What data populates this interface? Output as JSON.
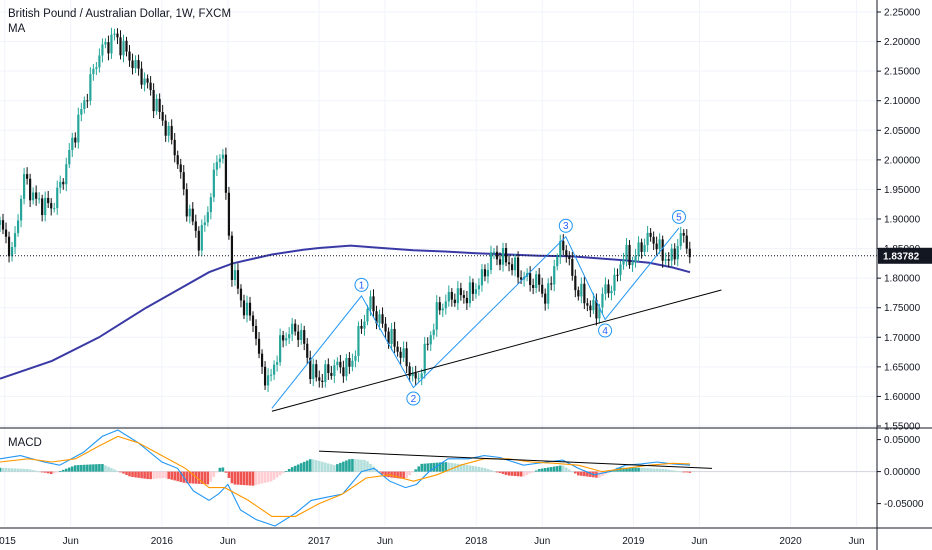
{
  "header": {
    "symbol_title": "British Pound / Australian Dollar, 1W, FXCM",
    "ma_label": "MA",
    "macd_label": "MACD"
  },
  "colors": {
    "up": "#26a69a",
    "down": "#111111",
    "ma": "#3a3aa6",
    "trendline": "#000000",
    "wave": "#2196f3",
    "macd_line": "#2196f3",
    "signal_line": "#ff9800",
    "hist_up_strong": "#26a69a",
    "hist_up_weak": "#b2dfdb",
    "hist_down_strong": "#ef5350",
    "hist_down_weak": "#ffcdd2",
    "price_tag": "#131722"
  },
  "chart_data": [
    {
      "type": "candlestick",
      "title": "British Pound / Australian Dollar, 1W, FXCM",
      "ylim": [
        1.55,
        2.25
      ],
      "yticks": [
        1.55,
        1.6,
        1.65,
        1.7,
        1.75,
        1.8,
        1.85,
        1.9,
        1.95,
        2.0,
        2.05,
        2.1,
        2.15,
        2.2,
        2.25
      ],
      "ytick_labels": [
        "1.55000",
        "1.60000",
        "1.65000",
        "1.70000",
        "1.75000",
        "1.80000",
        "1.85000",
        "1.90000",
        "1.95000",
        "2.00000",
        "2.05000",
        "2.10000",
        "2.15000",
        "2.20000",
        "2.25000"
      ],
      "xlim": [
        2014.97,
        2020.55
      ],
      "xticks": [
        2015.0,
        2015.42,
        2016.0,
        2016.42,
        2017.0,
        2017.42,
        2018.0,
        2018.42,
        2019.0,
        2019.42,
        2020.0,
        2020.42
      ],
      "xtick_labels": [
        "2015",
        "Jun",
        "2016",
        "Jun",
        "2017",
        "Jun",
        "2018",
        "Jun",
        "2019",
        "Jun",
        "2020",
        "Jun"
      ],
      "last_price": 1.83782,
      "last_price_label": "1.83782",
      "price_path": [
        [
          2014.97,
          1.89
        ],
        [
          2015.05,
          1.84
        ],
        [
          2015.12,
          1.97
        ],
        [
          2015.2,
          1.93
        ],
        [
          2015.3,
          1.92
        ],
        [
          2015.36,
          1.96
        ],
        [
          2015.45,
          2.05
        ],
        [
          2015.6,
          2.18
        ],
        [
          2015.7,
          2.21
        ],
        [
          2015.8,
          2.17
        ],
        [
          2015.9,
          2.13
        ],
        [
          2016.0,
          2.07
        ],
        [
          2016.08,
          2.02
        ],
        [
          2016.16,
          1.92
        ],
        [
          2016.24,
          1.86
        ],
        [
          2016.28,
          1.9
        ],
        [
          2016.33,
          1.97
        ],
        [
          2016.38,
          2.03
        ],
        [
          2016.41,
          1.93
        ],
        [
          2016.44,
          1.82
        ],
        [
          2016.52,
          1.75
        ],
        [
          2016.58,
          1.73
        ],
        [
          2016.62,
          1.66
        ],
        [
          2016.68,
          1.62
        ],
        [
          2016.74,
          1.68
        ],
        [
          2016.8,
          1.71
        ],
        [
          2016.88,
          1.71
        ],
        [
          2016.95,
          1.64
        ],
        [
          2017.0,
          1.63
        ],
        [
          2017.1,
          1.65
        ],
        [
          2017.2,
          1.65
        ],
        [
          2017.26,
          1.71
        ],
        [
          2017.32,
          1.76
        ],
        [
          2017.38,
          1.73
        ],
        [
          2017.45,
          1.7
        ],
        [
          2017.55,
          1.66
        ],
        [
          2017.62,
          1.62
        ],
        [
          2017.68,
          1.68
        ],
        [
          2017.76,
          1.75
        ],
        [
          2017.85,
          1.77
        ],
        [
          2017.95,
          1.77
        ],
        [
          2018.04,
          1.8
        ],
        [
          2018.1,
          1.84
        ],
        [
          2018.2,
          1.83
        ],
        [
          2018.3,
          1.8
        ],
        [
          2018.4,
          1.79
        ],
        [
          2018.45,
          1.76
        ],
        [
          2018.5,
          1.83
        ],
        [
          2018.56,
          1.86
        ],
        [
          2018.62,
          1.79
        ],
        [
          2018.7,
          1.76
        ],
        [
          2018.76,
          1.74
        ],
        [
          2018.82,
          1.78
        ],
        [
          2018.88,
          1.79
        ],
        [
          2018.93,
          1.84
        ],
        [
          2019.0,
          1.83
        ],
        [
          2019.06,
          1.86
        ],
        [
          2019.12,
          1.87
        ],
        [
          2019.18,
          1.84
        ],
        [
          2019.24,
          1.83
        ],
        [
          2019.3,
          1.87
        ],
        [
          2019.34,
          1.86
        ],
        [
          2019.36,
          1.84
        ]
      ],
      "moving_average": [
        [
          2014.97,
          1.63
        ],
        [
          2015.3,
          1.66
        ],
        [
          2015.6,
          1.7
        ],
        [
          2015.9,
          1.75
        ],
        [
          2016.1,
          1.78
        ],
        [
          2016.3,
          1.81
        ],
        [
          2016.45,
          1.825
        ],
        [
          2016.7,
          1.84
        ],
        [
          2016.9,
          1.848
        ],
        [
          2017.0,
          1.851
        ],
        [
          2017.2,
          1.855
        ],
        [
          2017.4,
          1.851
        ],
        [
          2017.6,
          1.847
        ],
        [
          2017.8,
          1.845
        ],
        [
          2018.0,
          1.842
        ],
        [
          2018.2,
          1.84
        ],
        [
          2018.4,
          1.838
        ],
        [
          2018.6,
          1.837
        ],
        [
          2018.8,
          1.833
        ],
        [
          2018.95,
          1.83
        ],
        [
          2019.1,
          1.826
        ],
        [
          2019.25,
          1.818
        ],
        [
          2019.36,
          1.81
        ]
      ],
      "trendlines": [
        {
          "from": [
            2016.7,
            1.575
          ],
          "to": [
            2019.56,
            1.78
          ]
        }
      ],
      "elliott_waves": [
        {
          "label": "1",
          "x": 2017.27,
          "y": 1.77
        },
        {
          "label": "2",
          "x": 2017.6,
          "y": 1.615
        },
        {
          "label": "3",
          "x": 2018.57,
          "y": 1.87
        },
        {
          "label": "4",
          "x": 2018.82,
          "y": 1.73
        },
        {
          "label": "5",
          "x": 2019.29,
          "y": 1.885
        }
      ],
      "wave_path": [
        [
          2016.7,
          1.58
        ],
        [
          2017.27,
          1.77
        ],
        [
          2017.6,
          1.615
        ],
        [
          2018.57,
          1.87
        ],
        [
          2018.82,
          1.73
        ],
        [
          2019.29,
          1.885
        ]
      ],
      "legend": [
        {
          "name": "MA"
        }
      ]
    },
    {
      "type": "macd",
      "title": "MACD",
      "ylim": [
        -0.085,
        0.065
      ],
      "yticks": [
        0.05,
        0.0,
        -0.05
      ],
      "ytick_labels": [
        "0.05000",
        "0.00000",
        "-0.05000"
      ],
      "macd_path": [
        [
          2014.97,
          0.02
        ],
        [
          2015.1,
          0.025
        ],
        [
          2015.25,
          0.015
        ],
        [
          2015.35,
          0.01
        ],
        [
          2015.5,
          0.03
        ],
        [
          2015.62,
          0.055
        ],
        [
          2015.72,
          0.065
        ],
        [
          2015.85,
          0.045
        ],
        [
          2016.0,
          0.015
        ],
        [
          2016.1,
          0.005
        ],
        [
          2016.2,
          -0.03
        ],
        [
          2016.3,
          -0.045
        ],
        [
          2016.36,
          -0.035
        ],
        [
          2016.42,
          -0.02
        ],
        [
          2016.5,
          -0.06
        ],
        [
          2016.6,
          -0.075
        ],
        [
          2016.72,
          -0.085
        ],
        [
          2016.85,
          -0.065
        ],
        [
          2016.95,
          -0.045
        ],
        [
          2017.05,
          -0.04
        ],
        [
          2017.15,
          -0.035
        ],
        [
          2017.27,
          0.0
        ],
        [
          2017.35,
          0.005
        ],
        [
          2017.45,
          -0.015
        ],
        [
          2017.55,
          -0.025
        ],
        [
          2017.62,
          -0.02
        ],
        [
          2017.7,
          0.0
        ],
        [
          2017.82,
          0.02
        ],
        [
          2017.95,
          0.02
        ],
        [
          2018.05,
          0.025
        ],
        [
          2018.15,
          0.022
        ],
        [
          2018.3,
          0.01
        ],
        [
          2018.45,
          0.015
        ],
        [
          2018.55,
          0.018
        ],
        [
          2018.65,
          0.005
        ],
        [
          2018.75,
          -0.005
        ],
        [
          2018.85,
          0.0
        ],
        [
          2018.95,
          0.01
        ],
        [
          2019.05,
          0.012
        ],
        [
          2019.15,
          0.015
        ],
        [
          2019.25,
          0.012
        ],
        [
          2019.36,
          0.01
        ]
      ],
      "signal_path": [
        [
          2014.97,
          0.015
        ],
        [
          2015.15,
          0.02
        ],
        [
          2015.3,
          0.015
        ],
        [
          2015.45,
          0.02
        ],
        [
          2015.6,
          0.04
        ],
        [
          2015.72,
          0.055
        ],
        [
          2015.85,
          0.045
        ],
        [
          2016.0,
          0.025
        ],
        [
          2016.15,
          0.005
        ],
        [
          2016.3,
          -0.025
        ],
        [
          2016.4,
          -0.025
        ],
        [
          2016.55,
          -0.045
        ],
        [
          2016.7,
          -0.07
        ],
        [
          2016.85,
          -0.07
        ],
        [
          2017.0,
          -0.05
        ],
        [
          2017.15,
          -0.035
        ],
        [
          2017.3,
          -0.01
        ],
        [
          2017.45,
          -0.005
        ],
        [
          2017.6,
          -0.015
        ],
        [
          2017.75,
          -0.005
        ],
        [
          2017.9,
          0.01
        ],
        [
          2018.05,
          0.02
        ],
        [
          2018.2,
          0.02
        ],
        [
          2018.35,
          0.015
        ],
        [
          2018.5,
          0.013
        ],
        [
          2018.65,
          0.01
        ],
        [
          2018.8,
          0.0
        ],
        [
          2018.95,
          0.005
        ],
        [
          2019.1,
          0.01
        ],
        [
          2019.25,
          0.013
        ],
        [
          2019.36,
          0.012
        ]
      ],
      "histogram": [
        [
          2014.97,
          0.006
        ],
        [
          2015.15,
          0.004
        ],
        [
          2015.3,
          -0.004
        ],
        [
          2015.45,
          0.01
        ],
        [
          2015.62,
          0.012
        ],
        [
          2015.8,
          -0.008
        ],
        [
          2015.92,
          -0.012
        ],
        [
          2016.02,
          -0.01
        ],
        [
          2016.15,
          -0.018
        ],
        [
          2016.3,
          -0.02
        ],
        [
          2016.38,
          0.01
        ],
        [
          2016.45,
          -0.02
        ],
        [
          2016.58,
          -0.022
        ],
        [
          2016.7,
          -0.015
        ],
        [
          2016.82,
          0.006
        ],
        [
          2016.95,
          0.02
        ],
        [
          2017.1,
          0.01
        ],
        [
          2017.2,
          0.02
        ],
        [
          2017.3,
          0.018
        ],
        [
          2017.42,
          -0.008
        ],
        [
          2017.55,
          -0.012
        ],
        [
          2017.65,
          0.012
        ],
        [
          2017.8,
          0.015
        ],
        [
          2017.95,
          0.01
        ],
        [
          2018.05,
          0.006
        ],
        [
          2018.2,
          -0.006
        ],
        [
          2018.3,
          -0.008
        ],
        [
          2018.4,
          0.004
        ],
        [
          2018.55,
          0.01
        ],
        [
          2018.65,
          -0.006
        ],
        [
          2018.78,
          -0.01
        ],
        [
          2018.9,
          0.006
        ],
        [
          2019.05,
          0.006
        ],
        [
          2019.2,
          0.004
        ],
        [
          2019.36,
          -0.002
        ]
      ],
      "trendlines": [
        {
          "from": [
            2017.0,
            0.032
          ],
          "to": [
            2019.5,
            0.005
          ]
        }
      ],
      "legend": [
        {
          "name": "MACD"
        }
      ]
    }
  ]
}
